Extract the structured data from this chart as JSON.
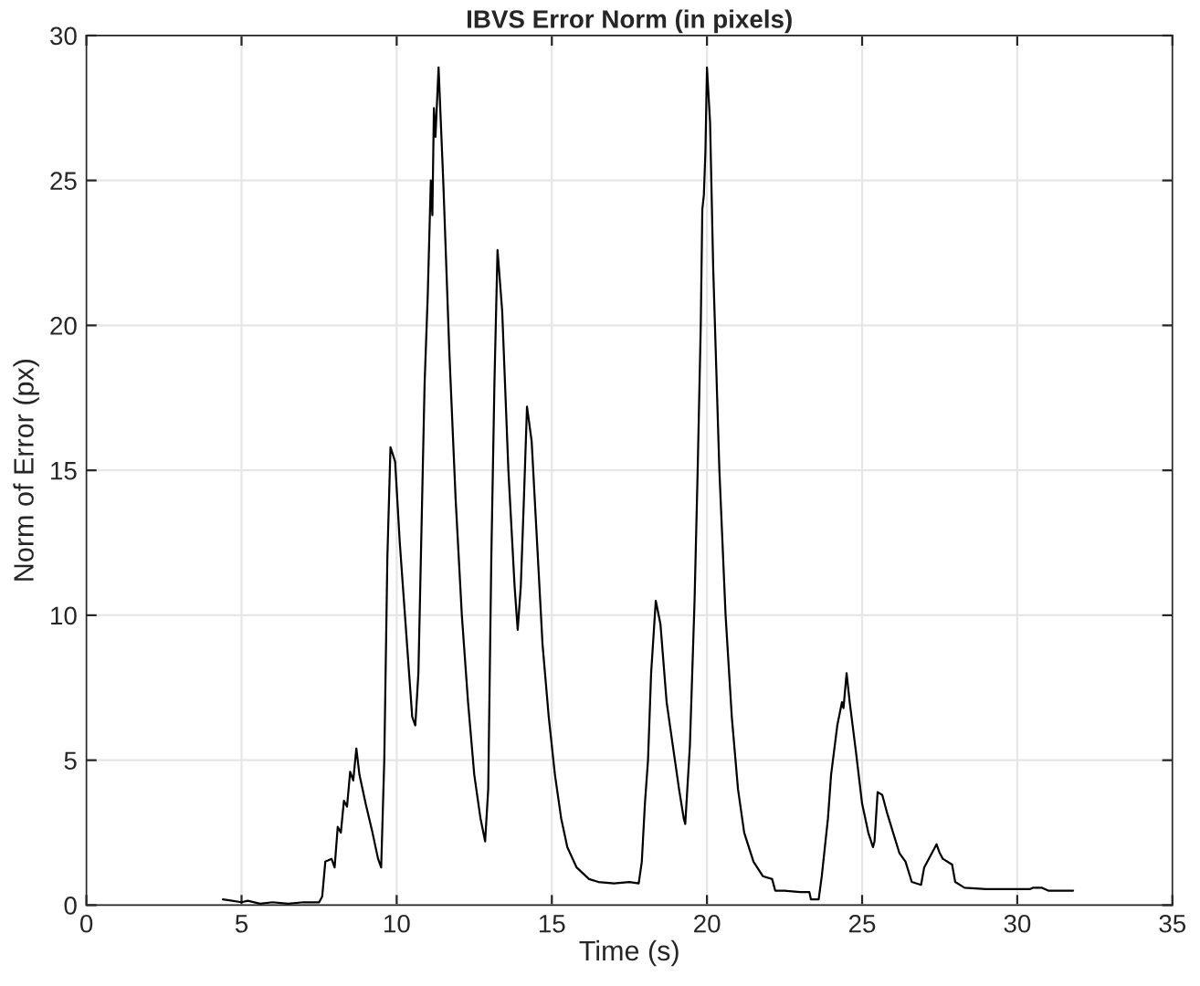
{
  "chart_data": {
    "type": "line",
    "title": "IBVS Error Norm (in pixels)",
    "xlabel": "Time (s)",
    "ylabel": "Norm of Error (px)",
    "xlim": [
      0,
      35
    ],
    "xticks": [
      0,
      5,
      10,
      15,
      20,
      25,
      30,
      35
    ],
    "ylim": [
      0,
      30
    ],
    "yticks": [
      0,
      5,
      10,
      15,
      20,
      25,
      30
    ],
    "grid": true,
    "series": [
      {
        "color": "#000000",
        "x": [
          4.4,
          5.0,
          5.2,
          5.6,
          6.0,
          6.5,
          7.0,
          7.5,
          7.6,
          7.7,
          7.9,
          8.0,
          8.1,
          8.2,
          8.3,
          8.4,
          8.5,
          8.6,
          8.7,
          8.8,
          9.0,
          9.2,
          9.4,
          9.5,
          9.6,
          9.7,
          9.8,
          9.95,
          10.1,
          10.3,
          10.5,
          10.6,
          10.7,
          10.8,
          10.9,
          11.0,
          11.1,
          11.15,
          11.2,
          11.25,
          11.35,
          11.5,
          11.7,
          11.9,
          12.1,
          12.3,
          12.5,
          12.7,
          12.85,
          12.95,
          13.05,
          13.15,
          13.25,
          13.4,
          13.6,
          13.8,
          13.9,
          14.0,
          14.1,
          14.2,
          14.35,
          14.5,
          14.7,
          14.9,
          15.1,
          15.3,
          15.5,
          15.8,
          16.2,
          16.5,
          17.0,
          17.5,
          17.8,
          17.9,
          18.0,
          18.1,
          18.2,
          18.35,
          18.5,
          18.7,
          18.9,
          19.1,
          19.25,
          19.3,
          19.45,
          19.6,
          19.7,
          19.8,
          19.85,
          19.9,
          19.95,
          20.0,
          20.1,
          20.2,
          20.4,
          20.6,
          20.8,
          21.0,
          21.2,
          21.5,
          21.8,
          22.1,
          22.2,
          22.5,
          23.0,
          23.3,
          23.35,
          23.6,
          23.7,
          23.9,
          24.0,
          24.2,
          24.35,
          24.4,
          24.5,
          24.6,
          24.8,
          25.0,
          25.2,
          25.35,
          25.4,
          25.5,
          25.65,
          25.8,
          26.0,
          26.2,
          26.4,
          26.6,
          26.9,
          27.0,
          27.2,
          27.4,
          27.5,
          27.6,
          27.9,
          28.0,
          28.3,
          29.0,
          29.8,
          30.4,
          30.5,
          30.8,
          31.0,
          31.8
        ],
        "values": [
          0.2,
          0.1,
          0.15,
          0.05,
          0.1,
          0.05,
          0.1,
          0.1,
          0.3,
          1.5,
          1.6,
          1.3,
          2.7,
          2.5,
          3.6,
          3.4,
          4.6,
          4.3,
          5.4,
          4.5,
          3.5,
          2.6,
          1.6,
          1.3,
          5,
          12,
          15.8,
          15.3,
          12.5,
          9.5,
          6.5,
          6.2,
          8,
          13,
          18,
          21,
          25,
          23.8,
          27.5,
          26.5,
          28.9,
          25,
          19,
          14,
          10,
          7,
          4.5,
          3,
          2.2,
          4,
          12,
          18,
          22.6,
          20.5,
          15,
          11,
          9.5,
          11,
          14,
          17.2,
          16,
          13,
          9,
          6.5,
          4.5,
          3,
          2,
          1.3,
          0.9,
          0.8,
          0.75,
          0.8,
          0.75,
          1.5,
          3.5,
          5,
          8,
          10.5,
          9.7,
          7,
          5.5,
          4,
          3,
          2.8,
          5.5,
          10.5,
          15,
          20,
          24,
          24.5,
          26,
          28.9,
          27,
          22,
          15,
          10,
          6.5,
          4,
          2.5,
          1.5,
          1,
          0.9,
          0.5,
          0.5,
          0.45,
          0.45,
          0.2,
          0.2,
          1.0,
          3.0,
          4.5,
          6.2,
          7,
          6.8,
          8,
          7.0,
          5.3,
          3.5,
          2.5,
          2.0,
          2.2,
          3.9,
          3.8,
          3.2,
          2.5,
          1.8,
          1.5,
          0.8,
          0.7,
          1.3,
          1.7,
          2.1,
          1.8,
          1.6,
          1.4,
          0.8,
          0.6,
          0.55,
          0.55,
          0.55,
          0.6,
          0.6,
          0.5,
          0.5
        ]
      }
    ]
  }
}
